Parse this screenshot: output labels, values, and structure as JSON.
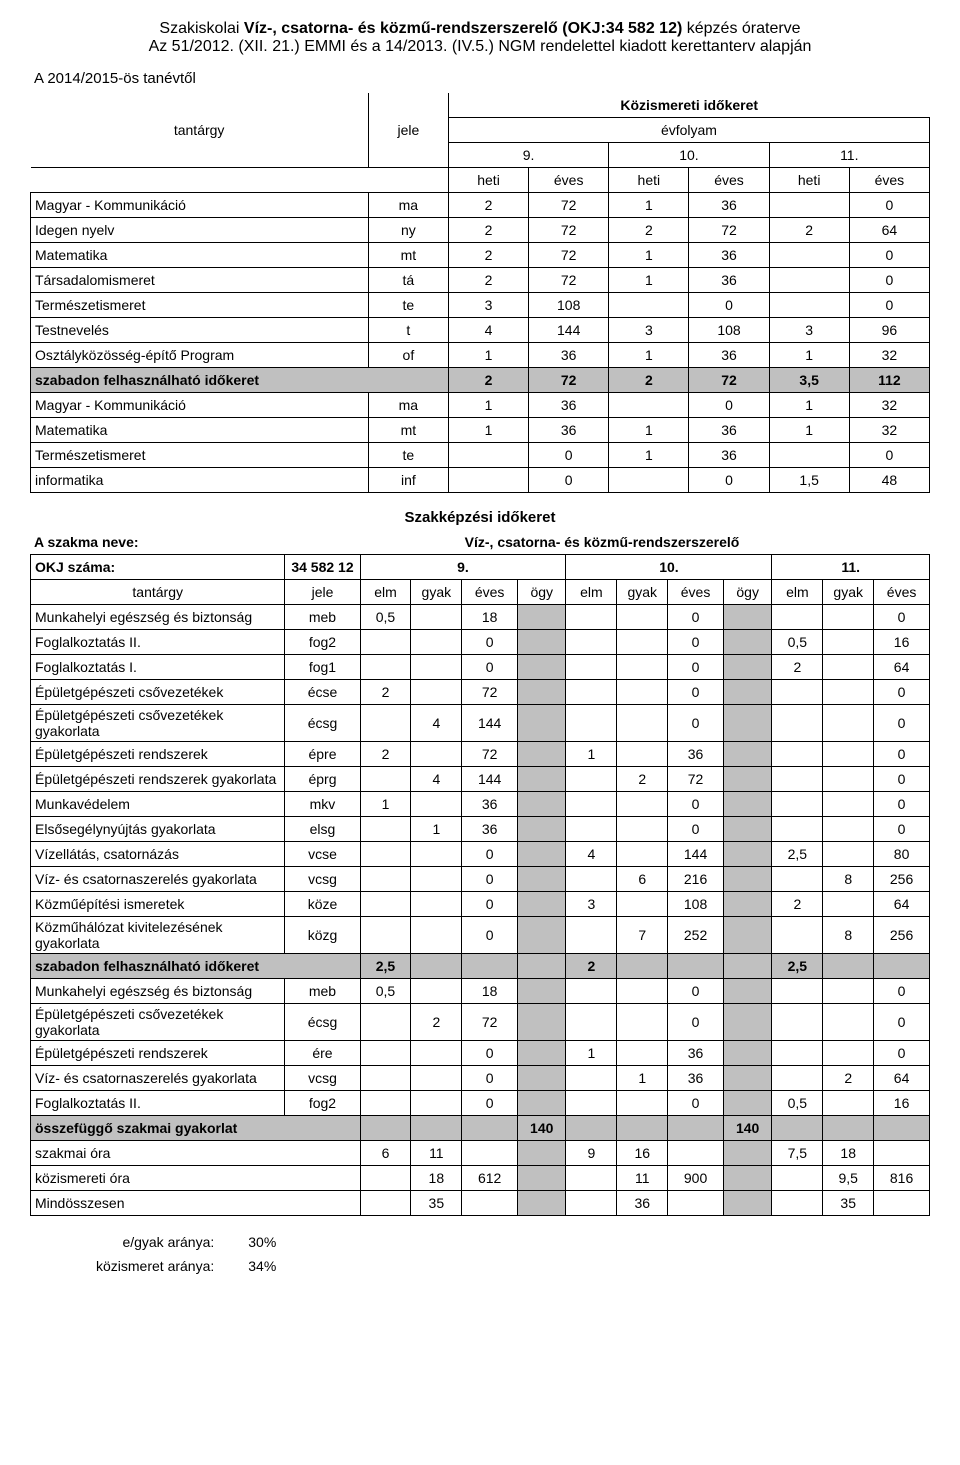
{
  "header": {
    "line1_pre": "Szakiskolai ",
    "line1_bold": "Víz-, csatorna- és közmű-rendszerszerelő (OKJ:34 582 12)",
    "line1_post": " képzés óraterve",
    "line2": "Az 51/2012. (XII. 21.) EMMI és a 14/2013. (IV.5.) NGM rendelettel kiadott kerettanterv alapján",
    "left_note": "A 2014/2015-ös tanévtől",
    "koz_title": "Közismereti időkeret",
    "evfolyam": "évfolyam"
  },
  "labels": {
    "tantargy": "tantárgy",
    "jele": "jele",
    "heti": "heti",
    "eves": "éves",
    "elm": "elm",
    "gyak": "gyak",
    "ogy": "ögy",
    "g9": "9.",
    "g10": "10.",
    "g11": "11."
  },
  "t1": {
    "rows": [
      {
        "name": "Magyar - Kommunikáció",
        "code": "ma",
        "v": [
          "2",
          "72",
          "1",
          "36",
          "",
          "0"
        ]
      },
      {
        "name": "Idegen nyelv",
        "code": "ny",
        "v": [
          "2",
          "72",
          "2",
          "72",
          "2",
          "64"
        ]
      },
      {
        "name": "Matematika",
        "code": "mt",
        "v": [
          "2",
          "72",
          "1",
          "36",
          "",
          "0"
        ]
      },
      {
        "name": "Társadalomismeret",
        "code": "tá",
        "v": [
          "2",
          "72",
          "1",
          "36",
          "",
          "0"
        ]
      },
      {
        "name": "Természetismeret",
        "code": "te",
        "v": [
          "3",
          "108",
          "",
          "0",
          "",
          "0"
        ]
      },
      {
        "name": "Testnevelés",
        "code": "t",
        "v": [
          "4",
          "144",
          "3",
          "108",
          "3",
          "96"
        ]
      },
      {
        "name": "Osztályközösség-építő Program",
        "code": "of",
        "v": [
          "1",
          "36",
          "1",
          "36",
          "1",
          "32"
        ]
      }
    ],
    "szabadon": {
      "label": "szabadon felhasználható időkeret",
      "v": [
        "2",
        "72",
        "2",
        "72",
        "3,5",
        "112"
      ]
    },
    "rows2": [
      {
        "name": "Magyar - Kommunikáció",
        "code": "ma",
        "v": [
          "1",
          "36",
          "",
          "0",
          "1",
          "32"
        ]
      },
      {
        "name": "Matematika",
        "code": "mt",
        "v": [
          "1",
          "36",
          "1",
          "36",
          "1",
          "32"
        ]
      },
      {
        "name": "Természetismeret",
        "code": "te",
        "v": [
          "",
          "0",
          "1",
          "36",
          "",
          "0"
        ]
      },
      {
        "name": "informatika",
        "code": "inf",
        "v": [
          "",
          "0",
          "",
          "0",
          "1,5",
          "48"
        ]
      }
    ]
  },
  "section2": {
    "title": "Szakképzési időkeret",
    "szakma_label": "A szakma neve:",
    "szakma_value": "Víz-, csatorna- és közmű-rendszerszerelő",
    "okj_label": "OKJ száma:",
    "okj_value": "34 582 12"
  },
  "t2": {
    "rows": [
      {
        "name": "Munkahelyi egészség és biztonság",
        "code": "meb",
        "v": [
          "0,5",
          "",
          "18",
          "",
          "",
          "",
          "0",
          "",
          "",
          "",
          "0"
        ]
      },
      {
        "name": "Foglalkoztatás II.",
        "code": "fog2",
        "v": [
          "",
          "",
          "0",
          "",
          "",
          "",
          "0",
          "",
          "0,5",
          "",
          "16"
        ]
      },
      {
        "name": "Foglalkoztatás I.",
        "code": "fog1",
        "v": [
          "",
          "",
          "0",
          "",
          "",
          "",
          "0",
          "",
          "2",
          "",
          "64"
        ]
      },
      {
        "name": "Épületgépészeti csővezetékek",
        "code": "écse",
        "v": [
          "2",
          "",
          "72",
          "",
          "",
          "",
          "0",
          "",
          "",
          "",
          "0"
        ]
      },
      {
        "name": "Épületgépészeti csővezetékek gyakorlata",
        "code": "écsg",
        "v": [
          "",
          "4",
          "144",
          "",
          "",
          "",
          "0",
          "",
          "",
          "",
          "0"
        ]
      },
      {
        "name": "Épületgépészeti rendszerek",
        "code": "épre",
        "v": [
          "2",
          "",
          "72",
          "",
          "1",
          "",
          "36",
          "",
          "",
          "",
          "0"
        ]
      },
      {
        "name": "Épületgépészeti rendszerek gyakorlata",
        "code": "éprg",
        "v": [
          "",
          "4",
          "144",
          "",
          "",
          "2",
          "72",
          "",
          "",
          "",
          "0"
        ]
      },
      {
        "name": "Munkavédelem",
        "code": "mkv",
        "v": [
          "1",
          "",
          "36",
          "",
          "",
          "",
          "0",
          "",
          "",
          "",
          "0"
        ]
      },
      {
        "name": "Elsősegélynyújtás gyakorlata",
        "code": "elsg",
        "v": [
          "",
          "1",
          "36",
          "",
          "",
          "",
          "0",
          "",
          "",
          "",
          "0"
        ]
      },
      {
        "name": "Vízellátás, csatornázás",
        "code": "vcse",
        "v": [
          "",
          "",
          "0",
          "",
          "4",
          "",
          "144",
          "",
          "2,5",
          "",
          "80"
        ]
      },
      {
        "name": "Víz- és csatornaszerelés gyakorlata",
        "code": "vcsg",
        "v": [
          "",
          "",
          "0",
          "",
          "",
          "6",
          "216",
          "",
          "",
          "8",
          "256"
        ]
      },
      {
        "name": "Közműépítési ismeretek",
        "code": "köze",
        "v": [
          "",
          "",
          "0",
          "",
          "3",
          "",
          "108",
          "",
          "2",
          "",
          "64"
        ]
      },
      {
        "name": "Közműhálózat kivitelezésének gyakorlata",
        "code": "közg",
        "v": [
          "",
          "",
          "0",
          "",
          "",
          "7",
          "252",
          "",
          "",
          "8",
          "256"
        ]
      }
    ],
    "szabadon": {
      "label": "szabadon felhasználható időkeret",
      "v": [
        "2,5",
        "",
        "",
        "",
        "2",
        "",
        "",
        "",
        "2,5",
        "",
        ""
      ]
    },
    "rows2": [
      {
        "name": "Munkahelyi egészség és biztonság",
        "code": "meb",
        "v": [
          "0,5",
          "",
          "18",
          "",
          "",
          "",
          "0",
          "",
          "",
          "",
          "0"
        ]
      },
      {
        "name": "Épületgépészeti csővezetékek gyakorlata",
        "code": "écsg",
        "v": [
          "",
          "2",
          "72",
          "",
          "",
          "",
          "0",
          "",
          "",
          "",
          "0"
        ]
      },
      {
        "name": "Épületgépészeti rendszerek",
        "code": "ére",
        "v": [
          "",
          "",
          "0",
          "",
          "1",
          "",
          "36",
          "",
          "",
          "",
          "0"
        ]
      },
      {
        "name": "Víz- és csatornaszerelés gyakorlata",
        "code": "vcsg",
        "v": [
          "",
          "",
          "0",
          "",
          "",
          "1",
          "36",
          "",
          "",
          "2",
          "64"
        ]
      },
      {
        "name": "Foglalkoztatás II.",
        "code": "fog2",
        "v": [
          "",
          "",
          "0",
          "",
          "",
          "",
          "0",
          "",
          "0,5",
          "",
          "16"
        ]
      }
    ],
    "bottom": [
      {
        "name": "összefüggő szakmai gyakorlat",
        "v": [
          "",
          "",
          "",
          "140",
          "",
          "",
          "",
          "140",
          "",
          "",
          ""
        ],
        "shade": true
      },
      {
        "name": "szakmai óra",
        "v": [
          "6",
          "11",
          "",
          "",
          "9",
          "16",
          "",
          "",
          "7,5",
          "18",
          ""
        ]
      },
      {
        "name": "közismereti óra",
        "v": [
          "",
          "18",
          "612",
          "",
          "",
          "11",
          "900",
          "",
          "",
          "9,5",
          "816"
        ]
      },
      {
        "name": "Mindösszesen",
        "v": [
          "",
          "35",
          "",
          "",
          "",
          "36",
          "",
          "",
          "",
          "35",
          ""
        ]
      }
    ]
  },
  "ratios": {
    "r1_label": "e/gyak aránya:",
    "r1_value": "30%",
    "r2_label": "közismeret aránya:",
    "r2_value": "34%"
  },
  "style": {
    "shade_color": "#c0c0c0"
  }
}
